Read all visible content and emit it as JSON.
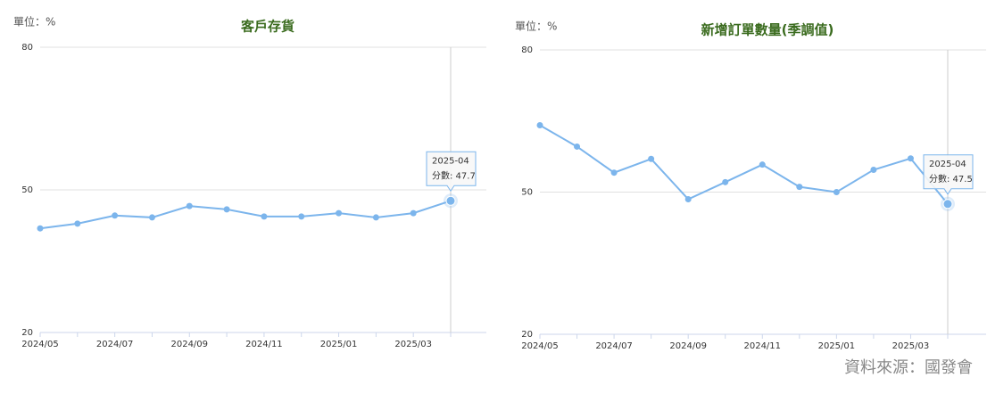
{
  "chart_data": [
    {
      "type": "line",
      "title": "客戶存貨",
      "unit_label": "單位：%",
      "categories": [
        "2024/05",
        null,
        "2024/07",
        null,
        "2024/09",
        null,
        "2024/11",
        null,
        "2025/01",
        null,
        "2025/03",
        null
      ],
      "series": [
        {
          "color": "#7cb5ec",
          "values": [
            41.9,
            42.9,
            44.6,
            44.2,
            46.6,
            45.9,
            44.4,
            44.4,
            45.1,
            44.2,
            45.1,
            47.7
          ]
        }
      ],
      "ylim": [
        20,
        80
      ],
      "yticks": [
        20,
        50,
        80
      ],
      "grid": true,
      "tooltip": {
        "title": "2025-04",
        "text": "分數: 47.7"
      }
    },
    {
      "type": "line",
      "title": "新增訂單數量(季調值)",
      "unit_label": "單位：%",
      "categories": [
        "2024/05",
        null,
        "2024/07",
        null,
        "2024/09",
        null,
        "2024/11",
        null,
        "2025/01",
        null,
        "2025/03",
        null
      ],
      "series": [
        {
          "color": "#7cb5ec",
          "values": [
            64.1,
            59.6,
            54.1,
            57.0,
            48.5,
            52.1,
            55.8,
            51.1,
            50.0,
            54.7,
            57.1,
            47.5
          ]
        }
      ],
      "ylim": [
        20,
        80
      ],
      "yticks": [
        20,
        50,
        80
      ],
      "grid": true,
      "tooltip": {
        "title": "2025-04",
        "text": "分數: 47.5"
      }
    }
  ],
  "source": "資料來源：國發會"
}
